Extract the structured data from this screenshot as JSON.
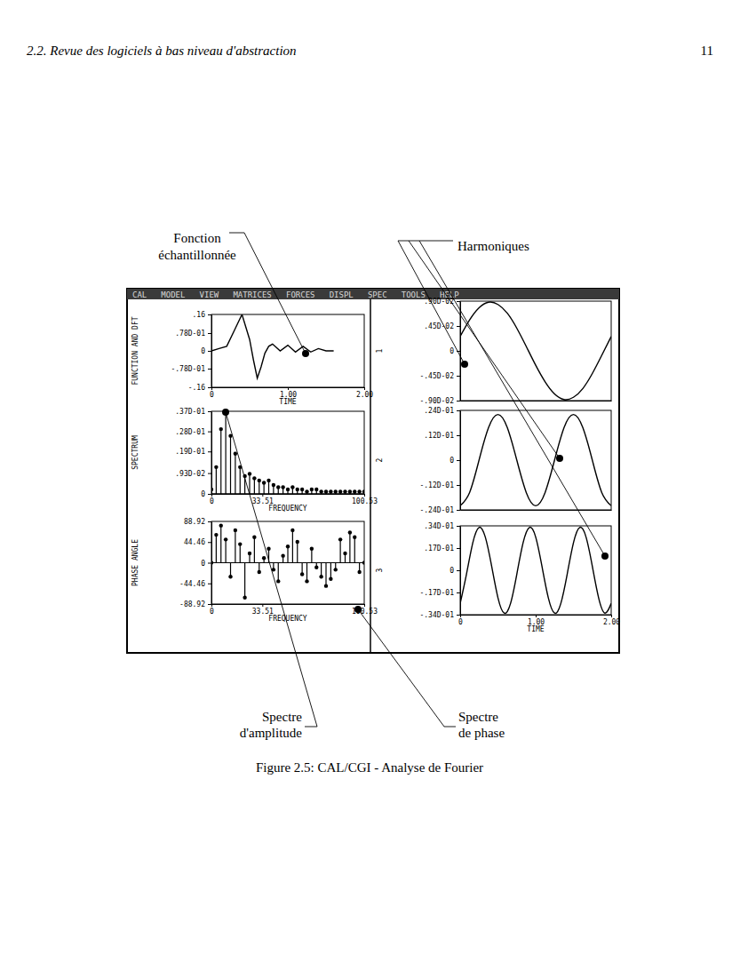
{
  "header": {
    "section": "2.2. Revue des logiciels à bas niveau d'abstraction",
    "page": "11"
  },
  "menu": [
    "CAL",
    "MODEL",
    "VIEW",
    "MATRICES",
    "FORCES",
    "DISPL",
    "SPEC",
    "TOOLS",
    "HELP"
  ],
  "annotations": {
    "function": [
      "Fonction",
      "échantillonnée"
    ],
    "harmonics": "Harmoniques",
    "amplitude": [
      "Spectre",
      "d'amplitude"
    ],
    "phase": [
      "Spectre",
      "de phase"
    ]
  },
  "caption": "Figure 2.5: CAL/CGI - Analyse de Fourier",
  "chart_data": [
    {
      "type": "line",
      "y_label": "FUNCTION AND DFT",
      "x_label": "TIME",
      "x": [
        0,
        0.1,
        0.2,
        0.3,
        0.4,
        0.5,
        0.55,
        0.6,
        0.65,
        0.7,
        0.75,
        0.8,
        0.9,
        1.0,
        1.1,
        1.2,
        1.3,
        1.4,
        1.5,
        1.6
      ],
      "values": [
        0,
        0.01,
        0.02,
        0.09,
        0.16,
        0.05,
        -0.04,
        -0.12,
        -0.07,
        -0.01,
        0.02,
        0.03,
        0.0,
        0.025,
        -0.005,
        0.02,
        -0.005,
        0.01,
        0.0,
        0.0
      ],
      "xlim": [
        0,
        2
      ],
      "ylim": [
        -0.16,
        0.16
      ],
      "xticks": [
        0,
        {
          "value": 1,
          "label": "1.00"
        },
        {
          "value": 2,
          "label": "2.00"
        }
      ],
      "yticks": [
        {
          "value": 0.16,
          "label": ".16"
        },
        {
          "value": 0.078,
          "label": ".78D-01"
        },
        0,
        {
          "value": -0.078,
          "label": "-.78D-01"
        },
        {
          "value": -0.16,
          "label": "-.16"
        }
      ]
    },
    {
      "type": "stem",
      "y_label": "SPECTRUM",
      "x_label": "FREQUENCY",
      "x": [
        0,
        3.14,
        6.28,
        9.42,
        12.57,
        15.71,
        18.85,
        21.99,
        25.13,
        28.27,
        31.42,
        34.56,
        37.7,
        40.84,
        43.98,
        47.12,
        50.27,
        53.41,
        56.55,
        59.69,
        62.83,
        65.97,
        69.12,
        72.26,
        75.4,
        78.54,
        81.68,
        84.82,
        87.96,
        91.11,
        94.25,
        97.39,
        100.53
      ],
      "values": [
        0.002,
        0.012,
        0.029,
        0.037,
        0.026,
        0.018,
        0.012,
        0.008,
        0.009,
        0.007,
        0.006,
        0.005,
        0.006,
        0.004,
        0.003,
        0.003,
        0.002,
        0.003,
        0.002,
        0.002,
        0.001,
        0.002,
        0.002,
        0.001,
        0.001,
        0.001,
        0.001,
        0.001,
        0.001,
        0.001,
        0.001,
        0.001,
        0.001
      ],
      "xlim": [
        0,
        100.53
      ],
      "ylim": [
        0,
        0.037
      ],
      "xticks": [
        0,
        33.51,
        100.53
      ],
      "yticks": [
        {
          "value": 0.037,
          "label": ".37D-01"
        },
        {
          "value": 0.028,
          "label": ".28D-01"
        },
        {
          "value": 0.019,
          "label": ".19D-01"
        },
        {
          "value": 0.0093,
          "label": ".93D-02"
        },
        0
      ]
    },
    {
      "type": "stem",
      "y_label": "PHASE ANGLE",
      "x_label": "FREQUENCY",
      "x": [
        0,
        3.14,
        6.28,
        9.42,
        12.57,
        15.71,
        18.85,
        21.99,
        25.13,
        28.27,
        31.42,
        34.56,
        37.7,
        40.84,
        43.98,
        47.12,
        50.27,
        53.41,
        56.55,
        59.69,
        62.83,
        65.97,
        69.12,
        72.26,
        75.4,
        78.54,
        81.68,
        84.82,
        87.96,
        91.11,
        94.25,
        97.39,
        100.53
      ],
      "values": [
        0,
        60,
        80,
        50,
        -30,
        70,
        40,
        -75,
        20,
        55,
        -20,
        10,
        30,
        -15,
        -40,
        15,
        35,
        70,
        45,
        -25,
        -40,
        30,
        -10,
        -30,
        -50,
        -35,
        -15,
        50,
        20,
        65,
        55,
        -20,
        0
      ],
      "xlim": [
        0,
        100.53
      ],
      "ylim": [
        -88.92,
        88.92
      ],
      "xticks": [
        0,
        33.51,
        100.53
      ],
      "yticks": [
        88.92,
        44.46,
        0,
        -44.46,
        -88.92
      ]
    },
    {
      "type": "line",
      "y_label": "1",
      "tick_labels": "y",
      "x": [
        0,
        0.125,
        0.25,
        0.375,
        0.5,
        0.625,
        0.75,
        0.875,
        1,
        1.125,
        1.25,
        1.375,
        1.5,
        1.625,
        1.75,
        1.875,
        2
      ],
      "values": [
        0.0026,
        0.0056,
        0.0078,
        0.0088,
        0.0084,
        0.0068,
        0.0041,
        0.0008,
        -0.0026,
        -0.0056,
        -0.0078,
        -0.0088,
        -0.0084,
        -0.0068,
        -0.0041,
        -0.0008,
        0.0026
      ],
      "xlim": [
        0,
        2
      ],
      "ylim": [
        -0.009,
        0.009
      ],
      "yticks": [
        {
          "value": 0.009,
          "label": ".90D-02"
        },
        {
          "value": 0.0045,
          "label": ".45D-02"
        },
        0,
        {
          "value": -0.0045,
          "label": "-.45D-02"
        },
        {
          "value": -0.009,
          "label": "-.90D-02"
        }
      ]
    },
    {
      "type": "line",
      "y_label": "2",
      "tick_labels": "y",
      "x": [
        0,
        0.125,
        0.25,
        0.375,
        0.5,
        0.625,
        0.75,
        0.875,
        1,
        1.125,
        1.25,
        1.375,
        1.5,
        1.625,
        1.75,
        1.875,
        2
      ],
      "values": [
        -0.022,
        -0.0156,
        0,
        0.0156,
        0.022,
        0.0156,
        0,
        -0.0156,
        -0.022,
        -0.0156,
        0,
        0.0156,
        0.022,
        0.0156,
        0,
        -0.0156,
        -0.022
      ],
      "xlim": [
        0,
        2
      ],
      "ylim": [
        -0.024,
        0.024
      ],
      "yticks": [
        {
          "value": 0.024,
          "label": ".24D-01"
        },
        {
          "value": 0.012,
          "label": ".12D-01"
        },
        0,
        {
          "value": -0.012,
          "label": "-.12D-01"
        },
        {
          "value": -0.024,
          "label": "-.24D-01"
        }
      ]
    },
    {
      "type": "line",
      "y_label": "3",
      "x_label": "TIME",
      "x": [
        0,
        0.083,
        0.167,
        0.25,
        0.333,
        0.417,
        0.5,
        0.583,
        0.667,
        0.75,
        0.833,
        0.917,
        1,
        1.083,
        1.167,
        1.25,
        1.333,
        1.417,
        1.5,
        1.583,
        1.667,
        1.75,
        1.833,
        1.917,
        2
      ],
      "values": [
        -0.0254,
        -0.0031,
        0.021,
        0.0328,
        0.0254,
        0.0031,
        -0.021,
        -0.0328,
        -0.0254,
        -0.0031,
        0.021,
        0.0328,
        0.0254,
        0.0031,
        -0.021,
        -0.0328,
        -0.0254,
        -0.0031,
        0.021,
        0.0328,
        0.0254,
        0.0031,
        -0.021,
        -0.0328,
        -0.0254
      ],
      "xlim": [
        0,
        2
      ],
      "ylim": [
        -0.034,
        0.034
      ],
      "xticks": [
        0,
        {
          "value": 1,
          "label": "1.00"
        },
        {
          "value": 2,
          "label": "2.00"
        }
      ],
      "yticks": [
        {
          "value": 0.034,
          "label": ".34D-01"
        },
        {
          "value": 0.017,
          "label": ".17D-01"
        },
        0,
        {
          "value": -0.017,
          "label": "-.17D-01"
        },
        {
          "value": -0.034,
          "label": "-.34D-01"
        }
      ]
    }
  ]
}
